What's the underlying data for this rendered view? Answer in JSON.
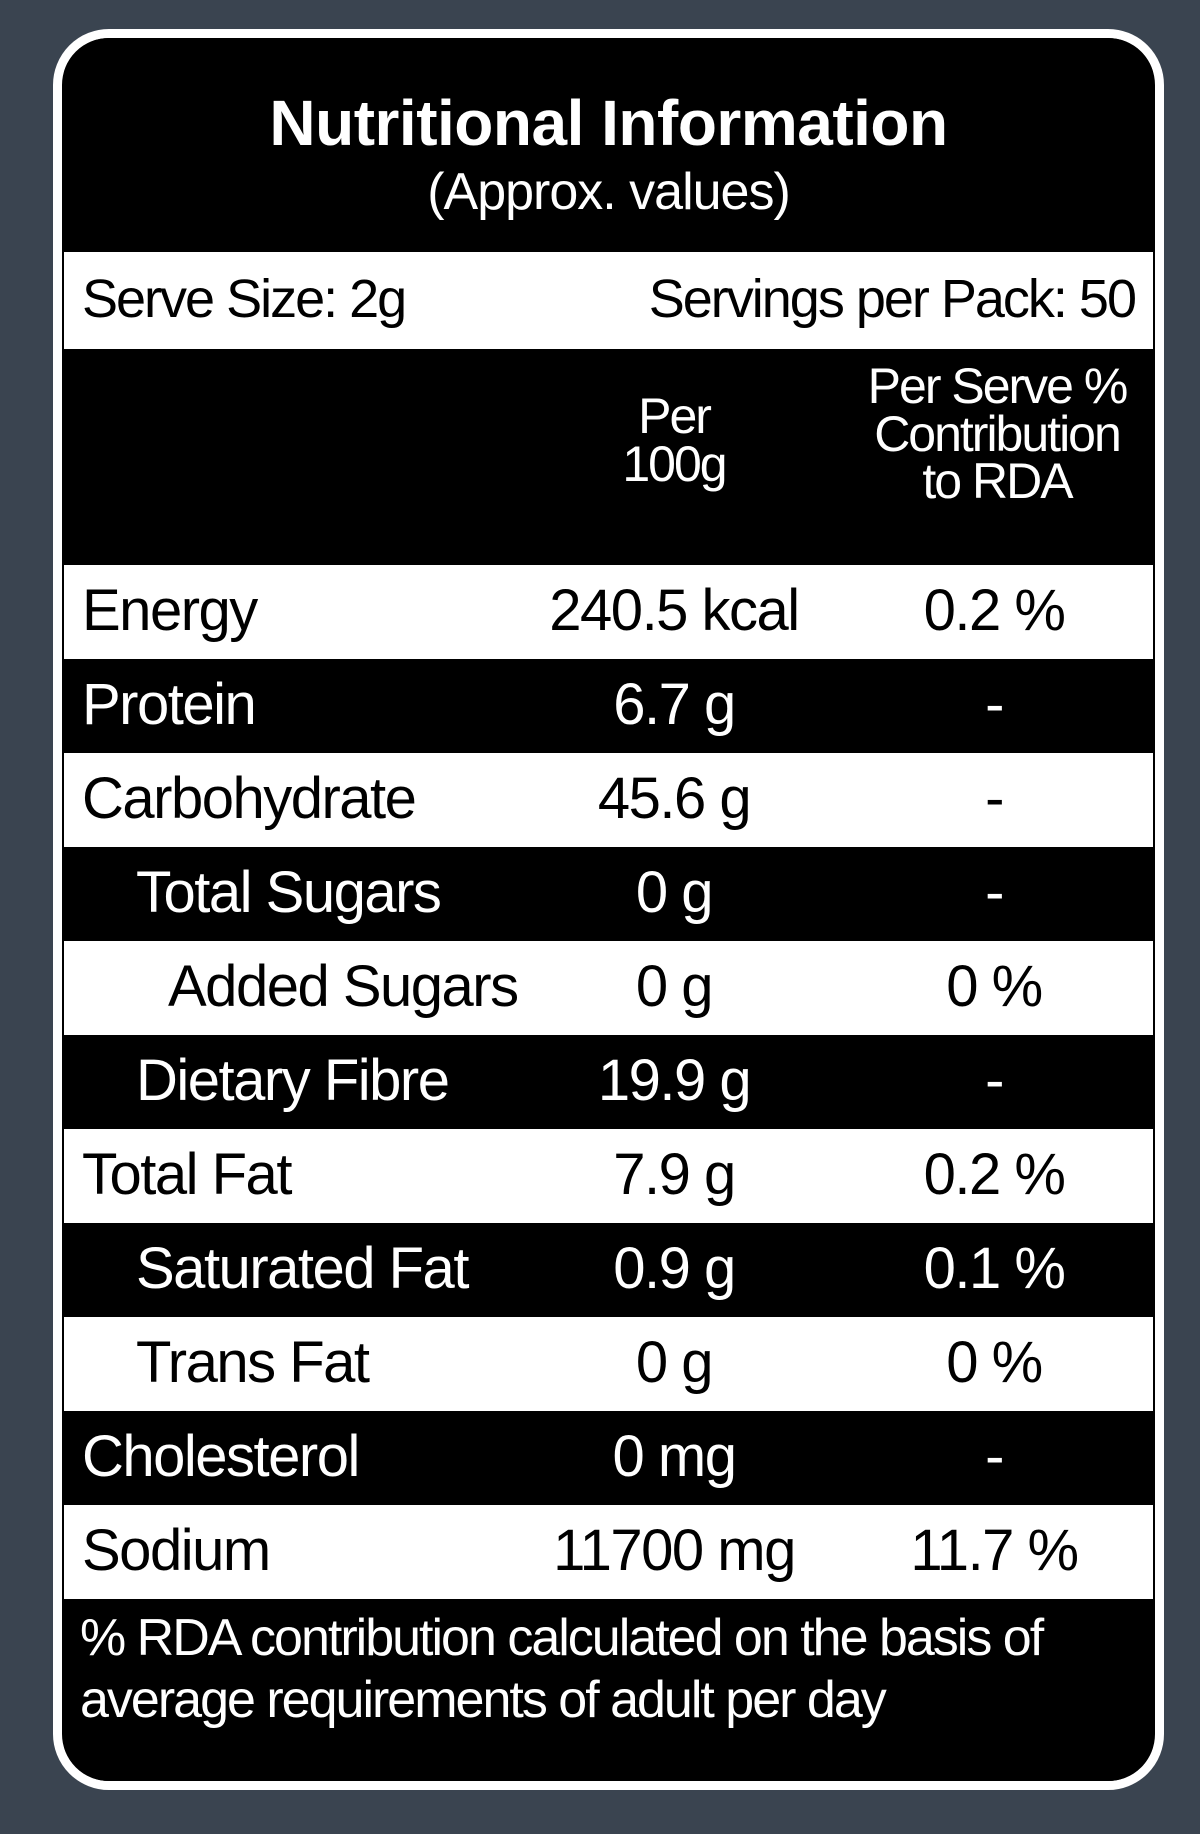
{
  "header": {
    "title": "Nutritional Information",
    "subtitle": "(Approx. values)"
  },
  "serving": {
    "serve_size": "Serve Size: 2g",
    "servings_per_pack": "Servings per Pack: 50"
  },
  "table": {
    "columns": [
      "Per\n100g",
      "Per Serve %\nContribution\nto RDA"
    ],
    "rows": [
      [
        "Energy",
        "240.5 kcal",
        "0.2 %"
      ],
      [
        "Protein",
        "6.7 g",
        "-"
      ],
      [
        "Carbohydrate",
        "45.6 g",
        "-"
      ],
      [
        "Total Sugars",
        "0 g",
        "-"
      ],
      [
        "Added Sugars",
        "0 g",
        "0 %"
      ],
      [
        "Dietary Fibre",
        "19.9 g",
        "-"
      ],
      [
        "Total Fat",
        "7.9 g",
        "0.2 %"
      ],
      [
        "Saturated Fat",
        "0.9 g",
        "0.1 %"
      ],
      [
        "Trans Fat",
        "0 g",
        "0 %"
      ],
      [
        "Cholesterol",
        "0 mg",
        "-"
      ],
      [
        "Sodium",
        "11700 mg",
        "11.7 %"
      ]
    ]
  },
  "footer": {
    "note": "% RDA contribution calculated on the basis of average requirements of adult per day"
  }
}
